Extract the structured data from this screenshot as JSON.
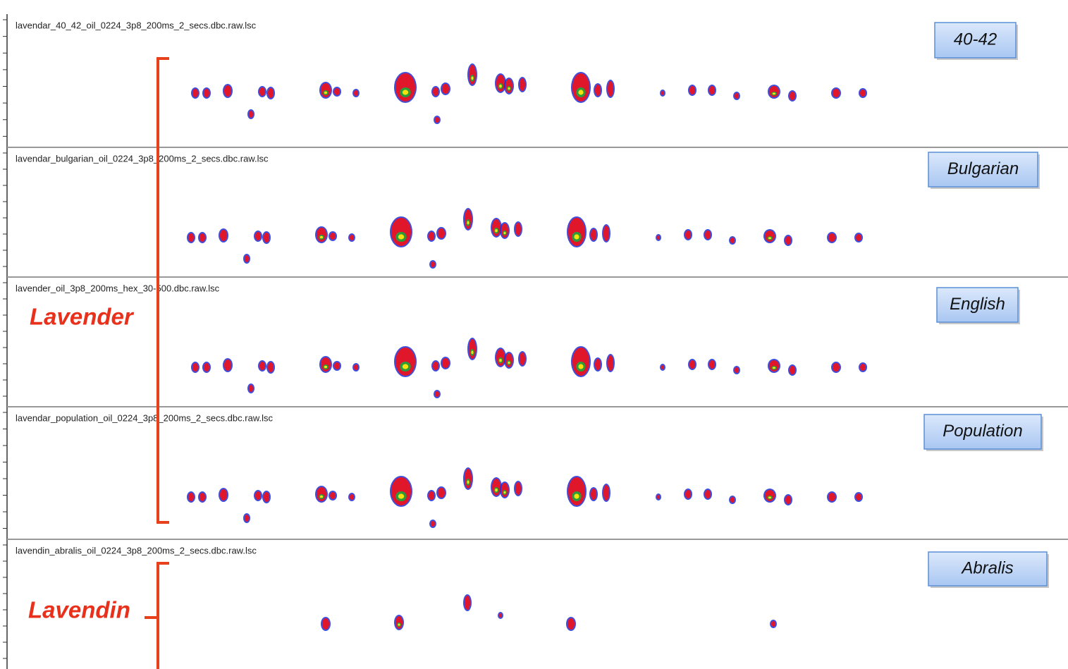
{
  "panels": [
    {
      "file": "lavendar_40_42_oil_0224_3p8_200ms_2_secs.dbc.raw.lsc",
      "tag": "40-42"
    },
    {
      "file": "lavendar_bulgarian_oil_0224_3p8_200ms_2_secs.dbc.raw.lsc",
      "tag": "Bulgarian"
    },
    {
      "file": "lavender_oil_3p8_200ms_hex_30-500.dbc.raw.lsc",
      "tag": "English"
    },
    {
      "file": "lavendar_population_oil_0224_3p8_200ms_2_secs.dbc.raw.lsc",
      "tag": "Population"
    },
    {
      "file": "lavendin_abralis_oil_0224_3p8_200ms_2_secs.dbc.raw.lsc",
      "tag": "Abralis"
    }
  ],
  "groups": [
    {
      "label": "Lavender"
    },
    {
      "label": "Lavendin"
    }
  ]
}
